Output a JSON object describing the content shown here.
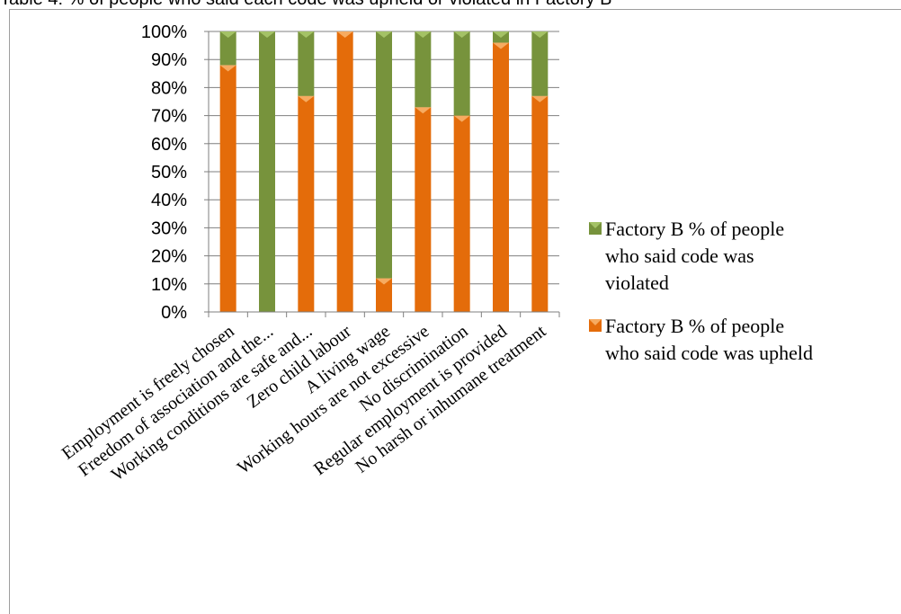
{
  "caption": "Table 4: % of people who said each code was upheld or violated in Factory B",
  "colors": {
    "upheld": "#e46c0a",
    "violated": "#77933c",
    "grid": "#7f7f7f",
    "axis": "#7f7f7f"
  },
  "chart_data": {
    "type": "bar",
    "stacked": true,
    "percent": true,
    "title": "",
    "xlabel": "",
    "ylabel": "",
    "ylim": [
      0,
      100
    ],
    "yticks": [
      "0%",
      "10%",
      "20%",
      "30%",
      "40%",
      "50%",
      "60%",
      "70%",
      "80%",
      "90%",
      "100%"
    ],
    "grid": true,
    "legend_position": "right",
    "categories": [
      "Employment is freely chosen",
      "Freedom of association and the...",
      "Working conditions are safe and...",
      "Zero child labour",
      "A living wage",
      "Working hours are not excessive",
      "No discrimination",
      "Regular employment is provided",
      "No harsh or inhumane treatment"
    ],
    "series": [
      {
        "name": "Factory B % of people who said code was upheld",
        "values": [
          88,
          0,
          77,
          100,
          12,
          73,
          70,
          96,
          77
        ]
      },
      {
        "name": "Factory B % of people who said code was violated",
        "values": [
          12,
          100,
          23,
          0,
          88,
          27,
          30,
          4,
          23
        ]
      }
    ],
    "legend": [
      {
        "series": 1,
        "lines": [
          "Factory B % of people",
          "who said code was",
          "violated"
        ]
      },
      {
        "series": 0,
        "lines": [
          "Factory B % of people",
          "who said code was upheld"
        ]
      }
    ]
  }
}
